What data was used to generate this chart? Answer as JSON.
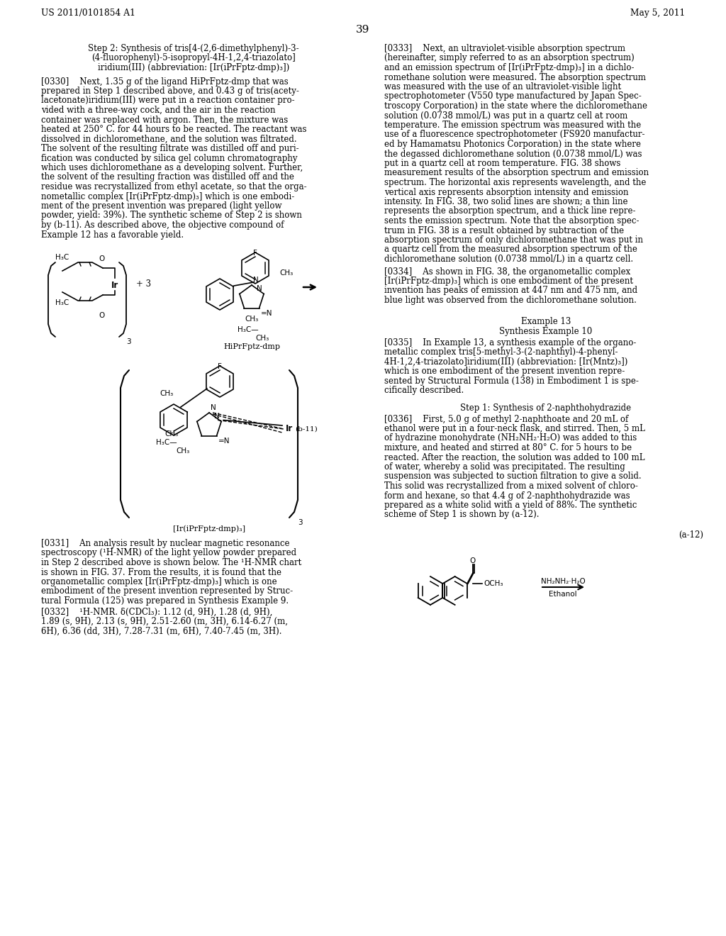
{
  "page_header_left": "US 2011/0101854 A1",
  "page_header_right": "May 5, 2011",
  "page_number": "39",
  "background_color": "#ffffff"
}
